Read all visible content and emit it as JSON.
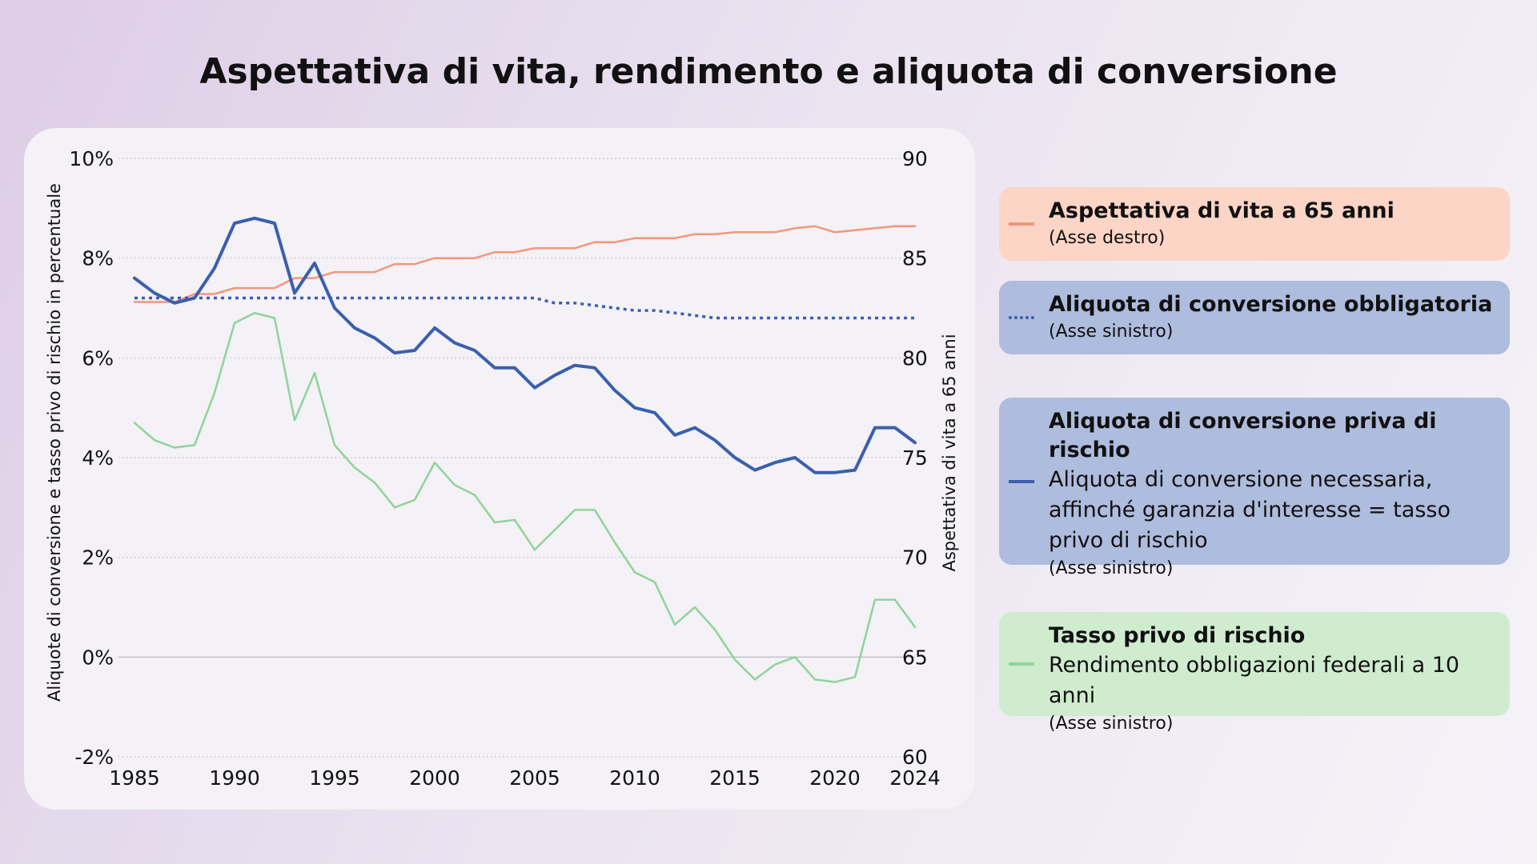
{
  "title": "Aspettativa di vita, rendimento e aliquota di conversione",
  "legend": [
    {
      "id": "life",
      "title": "Aspettativa di vita a 65 anni",
      "desc": "",
      "axis": "(Asse destro)",
      "bg": "#fcd5c6",
      "color": "#f4967a",
      "style": "solid"
    },
    {
      "id": "mandatory",
      "title": "Aliquota di conversione obbligatoria",
      "desc": "",
      "axis": "(Asse sinistro)",
      "bg": "#aebcdd",
      "color": "#3a5fae",
      "style": "dotted"
    },
    {
      "id": "riskfree_rate",
      "title": "Aliquota di conversione priva di rischio",
      "desc": "Aliquota di conversione necessaria, affinché garanzia d'interesse = tasso privo di rischio",
      "axis": "(Asse sinistro)",
      "bg": "#aebcdd",
      "color": "#3a5fae",
      "style": "solid"
    },
    {
      "id": "yield",
      "title": "Tasso privo di rischio",
      "desc": "Rendimento obbligazioni federali a 10 anni",
      "axis": "(Asse sinistro)",
      "bg": "#cfeccf",
      "color": "#8fd49a",
      "style": "solid"
    }
  ],
  "chart_data": {
    "type": "line",
    "title": "Aspettativa di vita, rendimento e aliquota di conversione",
    "x": [
      1985,
      1986,
      1987,
      1988,
      1989,
      1990,
      1991,
      1992,
      1993,
      1994,
      1995,
      1996,
      1997,
      1998,
      1999,
      2000,
      2001,
      2002,
      2003,
      2004,
      2005,
      2006,
      2007,
      2008,
      2009,
      2010,
      2011,
      2012,
      2013,
      2014,
      2015,
      2016,
      2017,
      2018,
      2019,
      2020,
      2021,
      2022,
      2023,
      2024
    ],
    "x_ticks": [
      "1985",
      "1990",
      "1995",
      "2000",
      "2005",
      "2010",
      "2015",
      "2020",
      "2024"
    ],
    "x_tick_values": [
      1985,
      1990,
      1995,
      2000,
      2005,
      2010,
      2015,
      2020,
      2024
    ],
    "xlim": [
      1985,
      2024
    ],
    "y_left": {
      "label": "Aliquote di conversione e tasso privo di rischio in percentuale",
      "lim": [
        -2,
        10
      ],
      "ticks": [
        -2,
        0,
        2,
        4,
        6,
        8,
        10
      ],
      "tick_labels": [
        "-2%",
        "0%",
        "2%",
        "4%",
        "6%",
        "8%",
        "10%"
      ]
    },
    "y_right": {
      "label": "Aspettativa di vita a 65 anni",
      "lim": [
        60,
        90
      ],
      "ticks": [
        60,
        65,
        70,
        75,
        80,
        85,
        90
      ],
      "tick_labels": [
        "60",
        "65",
        "70",
        "75",
        "80",
        "85",
        "90"
      ]
    },
    "grid": true,
    "series": [
      {
        "id": "life",
        "name": "Aspettativa di vita a 65 anni",
        "axis": "right",
        "color": "#f4967a",
        "width": 2.5,
        "dash": "",
        "values": [
          82.8,
          82.8,
          82.8,
          83.2,
          83.2,
          83.5,
          83.5,
          83.5,
          84.0,
          84.0,
          84.3,
          84.3,
          84.3,
          84.7,
          84.7,
          85.0,
          85.0,
          85.0,
          85.3,
          85.3,
          85.5,
          85.5,
          85.5,
          85.8,
          85.8,
          86.0,
          86.0,
          86.0,
          86.2,
          86.2,
          86.3,
          86.3,
          86.3,
          86.5,
          86.6,
          86.3,
          86.4,
          86.5,
          86.6,
          86.6
        ]
      },
      {
        "id": "mandatory",
        "name": "Aliquota di conversione obbligatoria",
        "axis": "left",
        "color": "#3a5fae",
        "width": 3.5,
        "dash": "4 5",
        "values": [
          7.2,
          7.2,
          7.2,
          7.2,
          7.2,
          7.2,
          7.2,
          7.2,
          7.2,
          7.2,
          7.2,
          7.2,
          7.2,
          7.2,
          7.2,
          7.2,
          7.2,
          7.2,
          7.2,
          7.2,
          7.2,
          7.1,
          7.1,
          7.05,
          7.0,
          6.95,
          6.95,
          6.9,
          6.85,
          6.8,
          6.8,
          6.8,
          6.8,
          6.8,
          6.8,
          6.8,
          6.8,
          6.8,
          6.8,
          6.8
        ]
      },
      {
        "id": "riskfree_rate",
        "name": "Aliquota di conversione priva di rischio",
        "axis": "left",
        "color": "#3a5fae",
        "width": 4,
        "dash": "",
        "values": [
          7.6,
          7.3,
          7.1,
          7.2,
          7.8,
          8.7,
          8.8,
          8.7,
          7.3,
          7.9,
          7.0,
          6.6,
          6.4,
          6.1,
          6.15,
          6.6,
          6.3,
          6.15,
          5.8,
          5.8,
          5.4,
          5.65,
          5.85,
          5.8,
          5.35,
          5.0,
          4.9,
          4.45,
          4.6,
          4.35,
          4.0,
          3.75,
          3.9,
          4.0,
          3.7,
          3.7,
          3.75,
          4.6,
          4.6,
          4.3
        ]
      },
      {
        "id": "yield",
        "name": "Tasso privo di rischio",
        "axis": "left",
        "color": "#8fd49a",
        "width": 2.5,
        "dash": "",
        "values": [
          4.7,
          4.35,
          4.2,
          4.25,
          5.3,
          6.7,
          6.9,
          6.8,
          4.75,
          5.7,
          4.25,
          3.8,
          3.5,
          3.0,
          3.15,
          3.9,
          3.45,
          3.25,
          2.7,
          2.75,
          2.15,
          2.55,
          2.95,
          2.95,
          2.3,
          1.7,
          1.5,
          0.65,
          1.0,
          0.55,
          -0.05,
          -0.45,
          -0.15,
          0.0,
          -0.45,
          -0.5,
          -0.4,
          1.15,
          1.15,
          0.6
        ]
      }
    ]
  }
}
